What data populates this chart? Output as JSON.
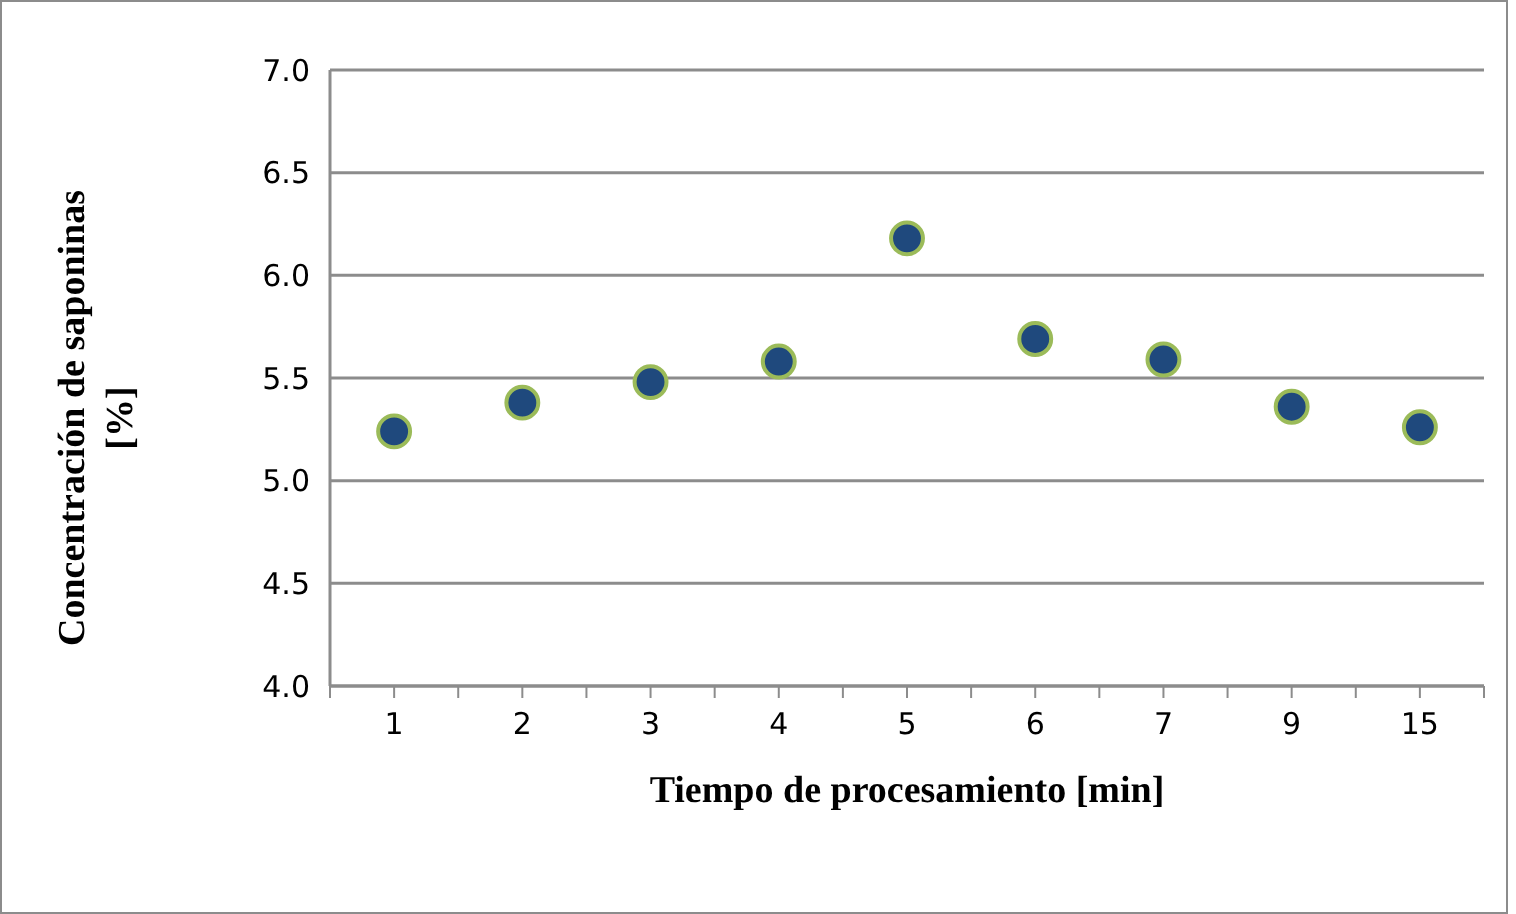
{
  "chart_data": {
    "type": "scatter",
    "xlabel": "Tiempo de procesamiento [min]",
    "ylabel": "Concentración de saponinas [%]",
    "categories": [
      "1",
      "2",
      "3",
      "4",
      "5",
      "6",
      "7",
      "9",
      "15"
    ],
    "series": [
      {
        "color": "#1f497d",
        "values": [
          5.24,
          5.38,
          5.48,
          5.58,
          6.18,
          5.69,
          5.59,
          5.36,
          5.26
        ]
      }
    ],
    "ylim": [
      4.0,
      7.0
    ],
    "yticks": [
      {
        "value": 4,
        "label": "4.0"
      },
      {
        "value": 4.5,
        "label": "4.5"
      },
      {
        "value": 5,
        "label": "5.0"
      },
      {
        "value": 5.5,
        "label": "5.5"
      },
      {
        "value": 6,
        "label": "6.0"
      },
      {
        "value": 6.5,
        "label": "6.5"
      },
      {
        "value": 7,
        "label": "7.0"
      }
    ],
    "grid": "y",
    "marker": "circle"
  }
}
